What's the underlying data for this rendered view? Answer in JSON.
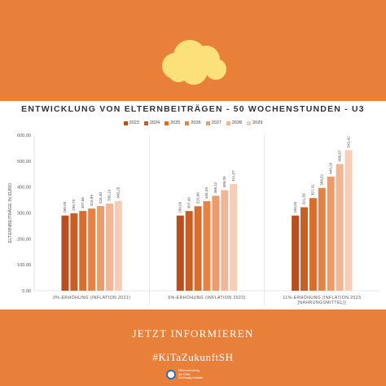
{
  "title": "ENTWICKLUNG VON ELTERNBEITRÄGEN - 50 WOCHENSTUNDEN - U3",
  "cta_label": "JETZT INFORMIEREN",
  "hashtag": "#KiTaZukunftSH",
  "footer_logo_text": [
    "Elternvertretung",
    "der KiTas",
    "Schleswig-Holstein"
  ],
  "colors": {
    "background": "#e8803a",
    "cloud": "#fce07a",
    "series": [
      "#b84f1d",
      "#c85e22",
      "#d86d2c",
      "#e48343",
      "#ec9c6a",
      "#f2b696",
      "#f7cdb8"
    ]
  },
  "chart_data": {
    "type": "bar",
    "ylabel": "ELTERNBEITRÄGE IN EURO",
    "ylim": [
      0,
      600
    ],
    "yticks": [
      "0,00",
      "100,00",
      "200,00",
      "300,00",
      "400,00",
      "500,00",
      "600,00"
    ],
    "categories": [
      "3%-ERHÖHUNG (INFLATION 2021)",
      "6%-ERHÖHUNG (INFLATION 2022)",
      "11%-ERHÖHUNG (INFLATION 2023 [NAHRUNGSMITTEL])"
    ],
    "legend_position": "top",
    "grid": false,
    "series": [
      {
        "name": "2023",
        "values": [
          290.0,
          290.0,
          290.0
        ],
        "labels": [
          "290,00",
          "290,00",
          "290,00"
        ]
      },
      {
        "name": "2024",
        "values": [
          298.7,
          307.4,
          321.9
        ],
        "labels": [
          "298,70",
          "307,40",
          "321,90"
        ]
      },
      {
        "name": "2025",
        "values": [
          307.66,
          325.86,
          357.31
        ],
        "labels": [
          "307,66",
          "325,86",
          "357,31"
        ]
      },
      {
        "name": "2026",
        "values": [
          316.89,
          345.39,
          396.61
        ],
        "labels": [
          "316,89",
          "345,39",
          "396,61"
        ]
      },
      {
        "name": "2027",
        "values": [
          326.4,
          366.12,
          440.24
        ],
        "labels": [
          "326,40",
          "366,12",
          "440,24"
        ]
      },
      {
        "name": "2028",
        "values": [
          336.19,
          388.09,
          488.67
        ],
        "labels": [
          "336,19",
          "388,09",
          "488,67"
        ]
      },
      {
        "name": "2029",
        "values": [
          346.28,
          411.37,
          542.42
        ],
        "labels": [
          "346,28",
          "411,37",
          "542,42"
        ]
      }
    ]
  }
}
